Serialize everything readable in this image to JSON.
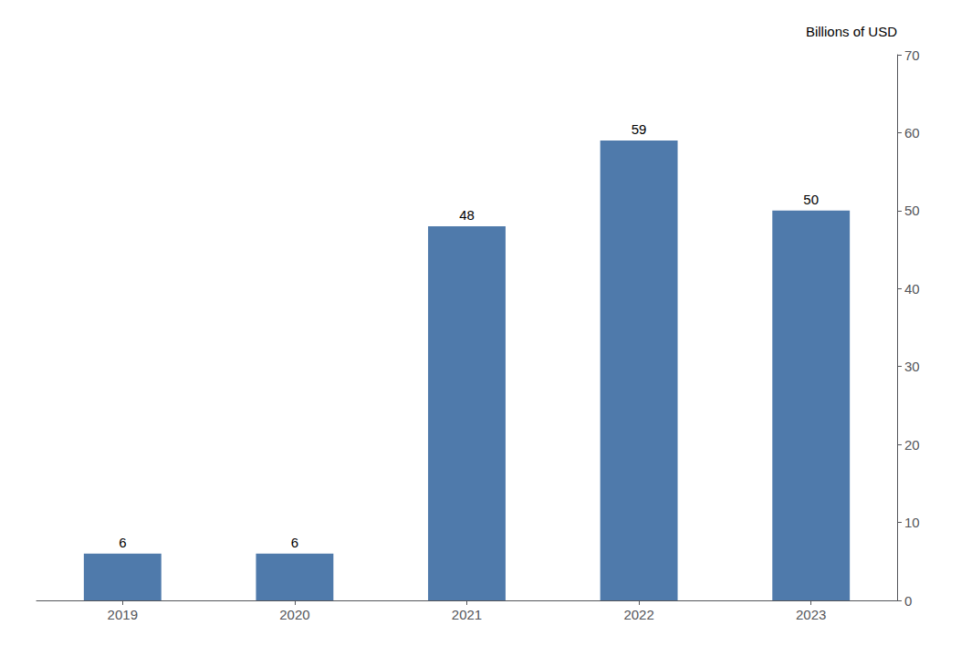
{
  "chart_data": {
    "type": "bar",
    "ylabel": "Billions of USD",
    "categories": [
      "2019",
      "2020",
      "2021",
      "2022",
      "2023"
    ],
    "values": [
      6,
      6,
      48,
      59,
      50
    ],
    "color": "#4f7aab",
    "ylim": [
      0,
      70
    ],
    "yticks": [
      0,
      10,
      20,
      30,
      40,
      50,
      60,
      70
    ],
    "grid": false,
    "data_labels": true
  }
}
